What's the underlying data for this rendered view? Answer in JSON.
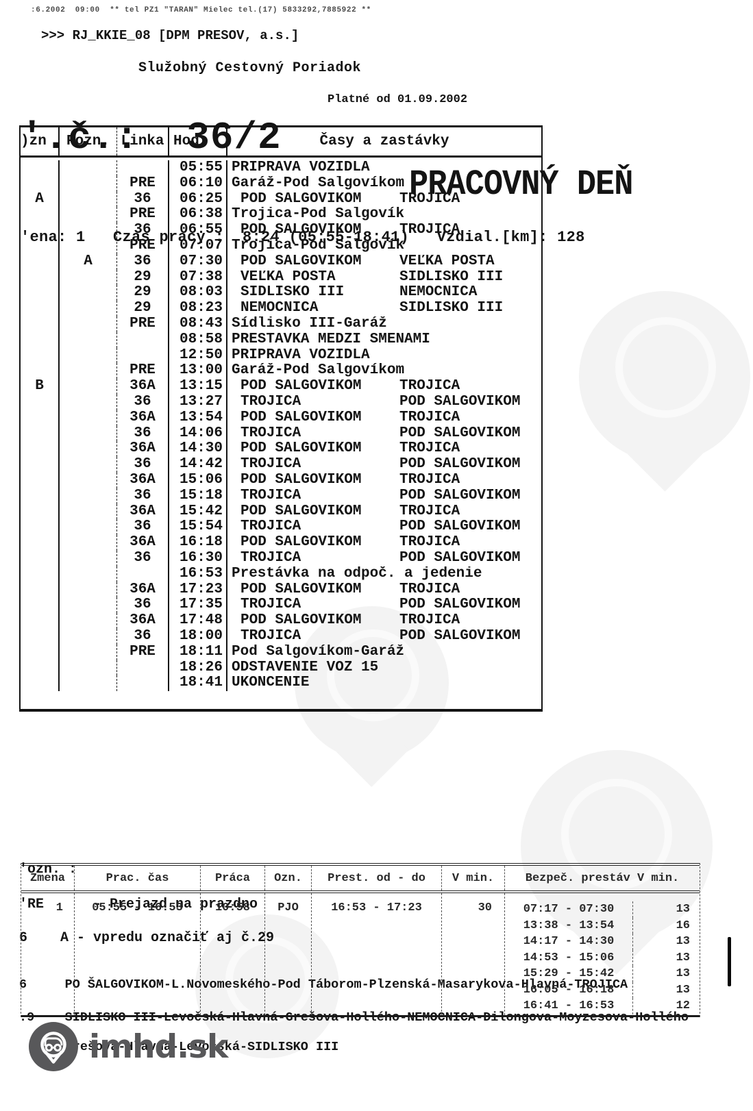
{
  "page": {
    "fax_line": ":6.2002  09:00  ** tel PZ1 \"TARAN\" Mielec tel.(17) 5833292,7885922 **",
    "system_line": ">>> RJ_KKIE_08 [DPM PRESOV, a.s.]",
    "doc_title": "Služobný Cestovný Poriadok",
    "valid_from": "Platné od 01.09.2002",
    "run_number": "'.č.:  36/2",
    "day_type": "PRACOVNÝ DEŇ",
    "shift_summary": "'ena: 1   Czas pracy :  8:24 (05:55-18:41)   Vzdial.[km]: 128"
  },
  "timetable": {
    "headers": {
      "ozn": ")zn",
      "pozn": "Pozn.",
      "linka": "Linka",
      "hod": "Hod.",
      "casy": "Časy a zastávky"
    },
    "rows": [
      [
        "",
        "",
        "",
        "05:55",
        "PRÍPRAVA VOZIDLA",
        ""
      ],
      [
        "",
        "",
        "PRE",
        "06:10",
        "Garáž-Pod Šalgovíkom",
        ""
      ],
      [
        "A",
        "",
        "36",
        "06:25",
        "POD ŠALGOVIKOM",
        "TROJICA"
      ],
      [
        "",
        "",
        "PRE",
        "06:38",
        "Trojica-Pod Šalgovík",
        ""
      ],
      [
        "",
        "",
        "36",
        "06:55",
        "POD ŠALGOVIKOM",
        "TROJICA"
      ],
      [
        "",
        "",
        "PRE",
        "07:07",
        "Trojica-Pod Šalgovík",
        ""
      ],
      [
        "",
        "A",
        "36",
        "07:30",
        "POD ŠALGOVIKOM",
        "VEĽKÁ POŠTA"
      ],
      [
        "",
        "",
        "29",
        "07:38",
        "VEĽKÁ POŠTA",
        "SÍDLISKO III"
      ],
      [
        "",
        "",
        "29",
        "08:03",
        "SÍDLISKO III",
        "NEMOCNICA"
      ],
      [
        "",
        "",
        "29",
        "08:23",
        "NEMOCNICA",
        "SÍDLISKO III"
      ],
      [
        "",
        "",
        "PRE",
        "08:43",
        "Sídlisko III-Garáž",
        ""
      ],
      [
        "",
        "",
        "",
        "08:58",
        "PRESTAVKA MEDZI SMENAMI",
        ""
      ],
      [
        "",
        "",
        "",
        "12:50",
        "PRÍPRAVA VOZIDLA",
        ""
      ],
      [
        "",
        "",
        "PRE",
        "13:00",
        "Garáž-Pod Šalgovíkom",
        ""
      ],
      [
        "B",
        "",
        "36A",
        "13:15",
        "POD ŠALGOVIKOM",
        "TROJICA"
      ],
      [
        "",
        "",
        "36",
        "13:27",
        "TROJICA",
        "POD ŠALGOVIKOM"
      ],
      [
        "",
        "",
        "36A",
        "13:54",
        "POD ŠALGOVIKOM",
        "TROJICA"
      ],
      [
        "",
        "",
        "36",
        "14:06",
        "TROJICA",
        "POD ŠALGOVIKOM"
      ],
      [
        "",
        "",
        "36A",
        "14:30",
        "POD ŠALGOVIKOM",
        "TROJICA"
      ],
      [
        "",
        "",
        "36",
        "14:42",
        "TROJICA",
        "POD ŠALGOVIKOM"
      ],
      [
        "",
        "",
        "36A",
        "15:06",
        "POD ŠALGOVIKOM",
        "TROJICA"
      ],
      [
        "",
        "",
        "36",
        "15:18",
        "TROJICA",
        "POD ŠALGOVIKOM"
      ],
      [
        "",
        "",
        "36A",
        "15:42",
        "POD ŠALGOVIKOM",
        "TROJICA"
      ],
      [
        "",
        "",
        "36",
        "15:54",
        "TROJICA",
        "POD ŠALGOVIKOM"
      ],
      [
        "",
        "",
        "36A",
        "16:18",
        "POD ŠALGOVIKOM",
        "TROJICA"
      ],
      [
        "",
        "",
        "36",
        "16:30",
        "TROJICA",
        "POD ŠALGOVIKOM"
      ],
      [
        "",
        "",
        "",
        "16:53",
        "Prestávka na odpoč. a jedenie",
        ""
      ],
      [
        "",
        "",
        "36A",
        "17:23",
        "POD ŠALGOVIKOM",
        "TROJICA"
      ],
      [
        "",
        "",
        "36",
        "17:35",
        "TROJICA",
        "POD ŠALGOVIKOM"
      ],
      [
        "",
        "",
        "36A",
        "17:48",
        "POD ŠALGOVIKOM",
        "TROJICA"
      ],
      [
        "",
        "",
        "36",
        "18:00",
        "TROJICA",
        "POD ŠALGOVIKOM"
      ],
      [
        "",
        "",
        "PRE",
        "18:11",
        "Pod Šalgovíkom-Garáž",
        ""
      ],
      [
        "",
        "",
        "",
        "18:26",
        "ODSTAVENIE VOZ 15",
        ""
      ],
      [
        "",
        "",
        "",
        "18:41",
        "UKONČENIE",
        ""
      ]
    ]
  },
  "notes": {
    "title": "'ozn. :",
    "lines": [
      "'RE      - Prejazd na prazdno",
      "6    A - vpredu označiť aj č.29"
    ]
  },
  "routes": [
    "6     PO ŠALGOVIKOM-L.Novomeského-Pod Táborom-Plzenská-Masarykova-Hlavná-TROJICA",
    ".9    SIDLISKO III-Levočská-Hlavná-Grešova-Hollého-NEMOCNICA-Dilongova-Moyzesova-Hollého",
    "      Grešova-Hlavná-Levočská-SIDLISKO III"
  ],
  "summary_table": {
    "headers": [
      "Zmena",
      "Prac. čas",
      "Práca",
      "Ozn.",
      "Prest.  od - do",
      "V min.",
      "Bezpeč. prestáv V min."
    ],
    "shift": {
      "zmena": "1",
      "prac_cas": "05:55 - 16:53",
      "praca": "10:58",
      "ozn": "PJO",
      "prest": "16:53 - 17:23",
      "v_min": "30"
    },
    "safety_breaks": [
      {
        "interval": "07:17 - 07:30",
        "min": "13"
      },
      {
        "interval": "13:38 - 13:54",
        "min": "16"
      },
      {
        "interval": "14:17 - 14:30",
        "min": "13"
      },
      {
        "interval": "14:53 - 15:06",
        "min": "13"
      },
      {
        "interval": "15:29 - 15:42",
        "min": "13"
      },
      {
        "interval": "16:05 - 16:18",
        "min": "13"
      },
      {
        "interval": "16:41 - 16:53",
        "min": "12"
      }
    ]
  },
  "footer": {
    "logo_text": "imhd.sk"
  },
  "colors": {
    "ink": "#141414",
    "logo_gray": "#58585a",
    "watermark": "#f3f3f3"
  }
}
